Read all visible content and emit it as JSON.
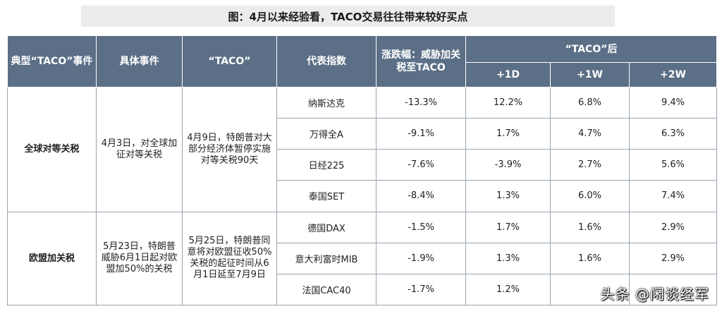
{
  "title": "图：4月以来经验看，TACO交易往往带来较好买点",
  "header": {
    "col_group": "典型“TACO”事件",
    "col_event": "具体事件",
    "col_taco": "“TACO”",
    "col_index": "代表指数",
    "col_change": "涨跌幅：威胁加关税至TACO",
    "col_after": "“TACO”后",
    "sub_1d": "+1D",
    "sub_1w": "+1W",
    "sub_2w": "+2W"
  },
  "groups": [
    {
      "name": "全球对等关税",
      "event": "4月3日，对全球加征对等关税",
      "taco": "4月9日，特朗普对大部分经济体暂停实施对等关税90天",
      "rows": [
        {
          "index": "纳斯达克",
          "change": "-13.3%",
          "d1": "12.2%",
          "w1": "6.8%",
          "w2": "9.4%"
        },
        {
          "index": "万得全A",
          "change": "-9.1%",
          "d1": "1.7%",
          "w1": "4.7%",
          "w2": "6.3%"
        },
        {
          "index": "日经225",
          "change": "-7.6%",
          "d1": "-3.9%",
          "w1": "2.7%",
          "w2": "5.6%"
        },
        {
          "index": "泰国SET",
          "change": "-8.4%",
          "d1": "1.3%",
          "w1": "6.0%",
          "w2": "7.4%"
        }
      ]
    },
    {
      "name": "欧盟加关税",
      "event": "5月23日，特朗普威胁6月1日起对欧盟加50%的关税",
      "taco": "5月25日，特朗普同意将对欧盟征收50%关税的起征时间从6月1日延至7月9日",
      "rows": [
        {
          "index": "德国DAX",
          "change": "-1.5%",
          "d1": "1.7%",
          "w1": "1.6%",
          "w2": "2.9%"
        },
        {
          "index": "意大利富时MIB",
          "change": "-1.9%",
          "d1": "1.3%",
          "w1": "1.6%",
          "w2": "2.9%"
        },
        {
          "index": "法国CAC40",
          "change": "-1.7%",
          "d1": "1.2%",
          "w1": "",
          "w2": ""
        }
      ]
    }
  ],
  "watermark": "头条 @闲谈经军"
}
